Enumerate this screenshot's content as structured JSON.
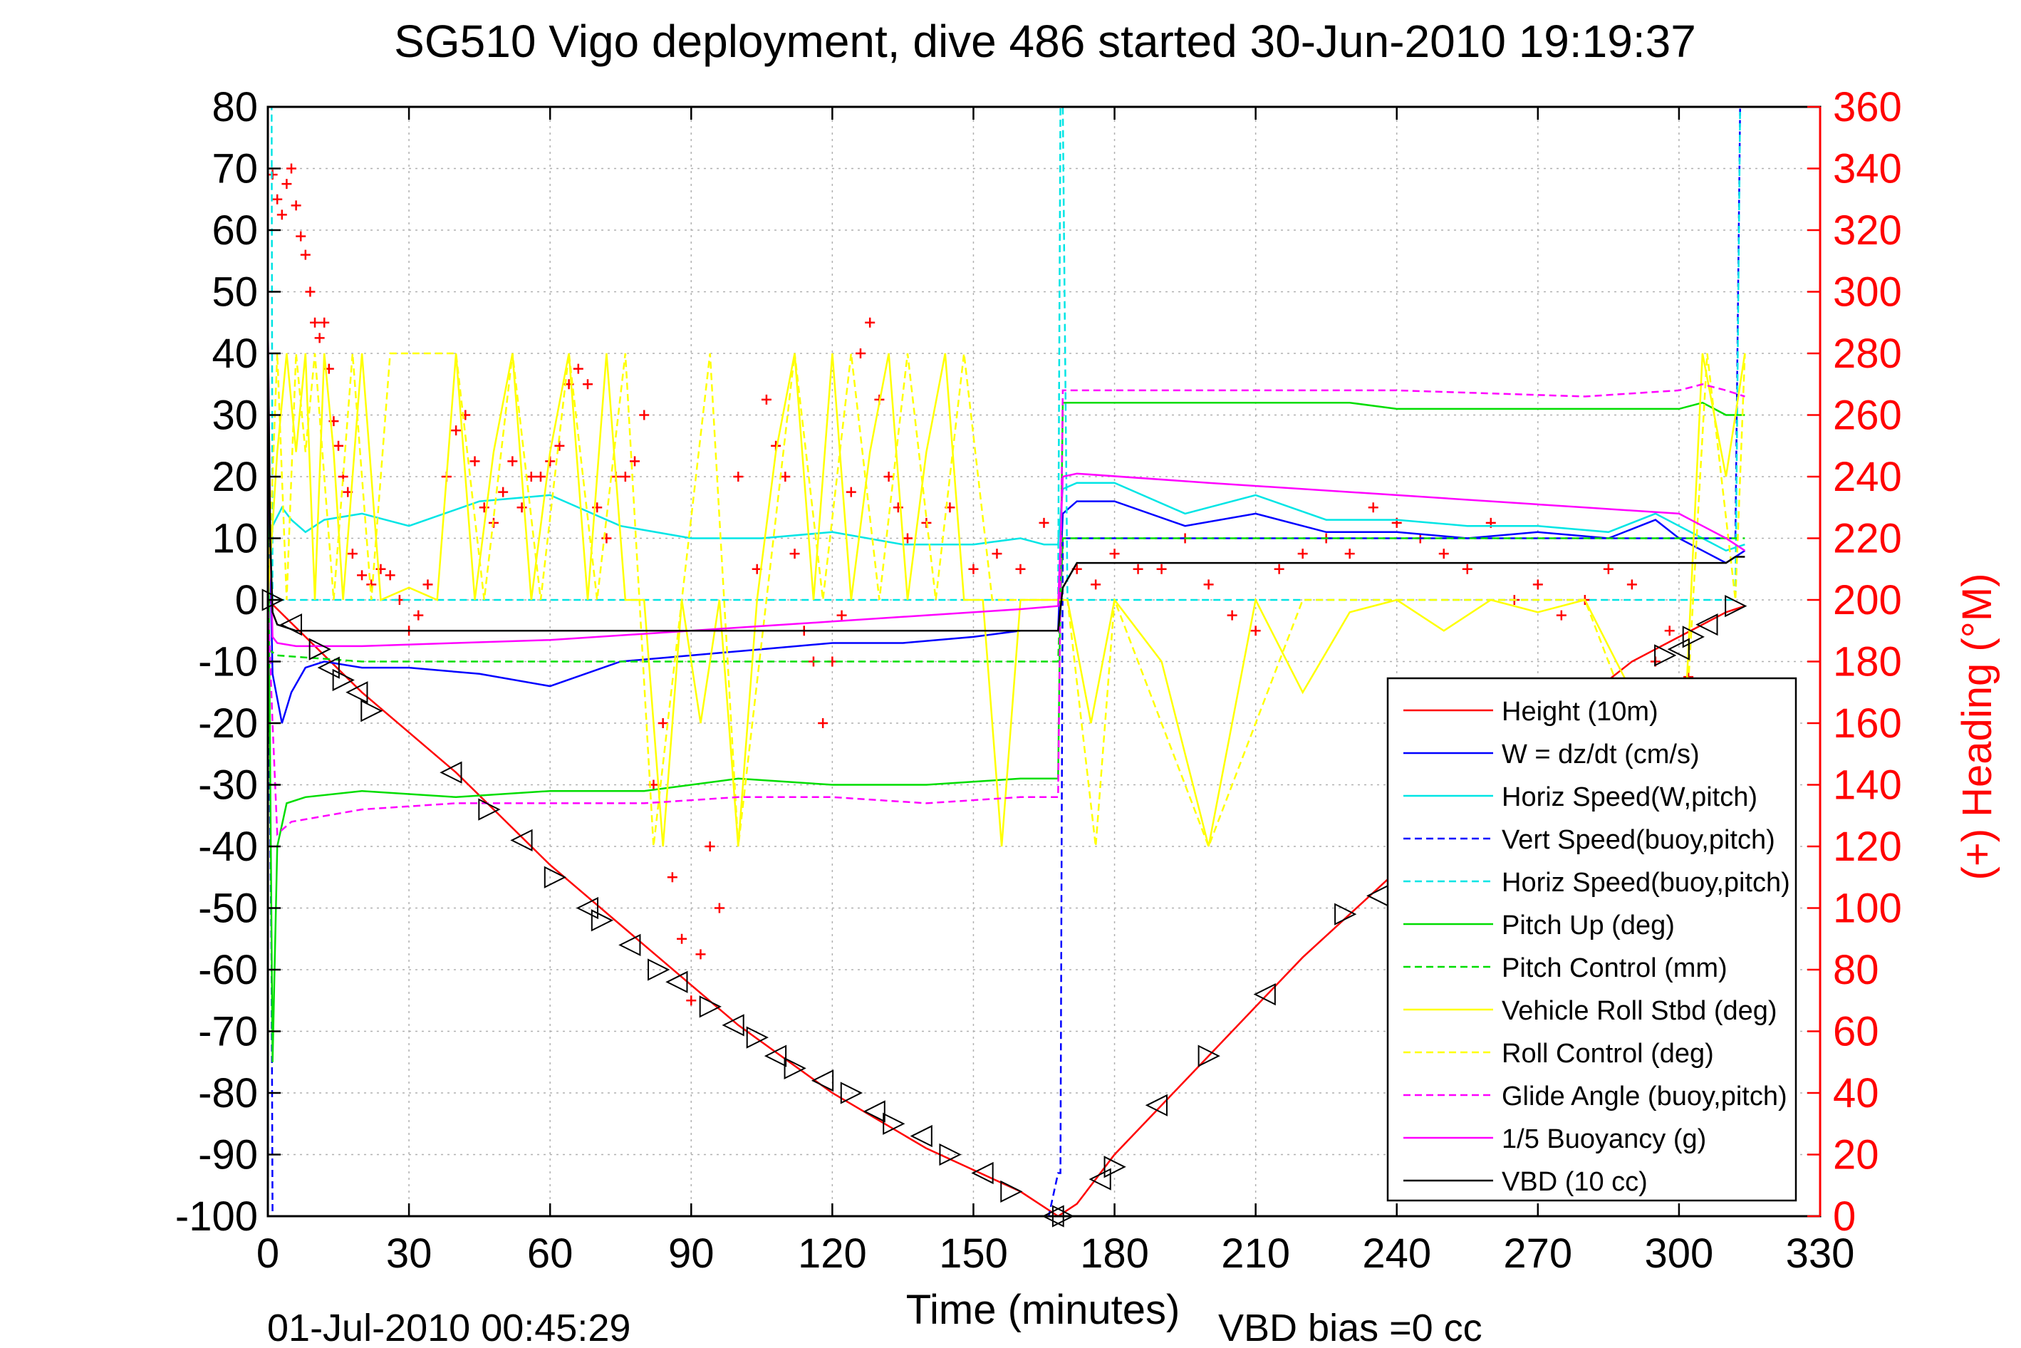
{
  "chart_data": {
    "type": "line",
    "title": "SG510 Vigo deployment, dive 486 started 30-Jun-2010 19:19:37",
    "xlabel": "Time (minutes)",
    "ylabel": "",
    "ylabel_right": "(+) Heading (°M)",
    "footer_left": "01-Jul-2010 00:45:29",
    "footer_right": "VBD bias =0 cc",
    "xlim": [
      0,
      330
    ],
    "ylim": [
      -100,
      80
    ],
    "ylim_right": [
      0,
      360
    ],
    "grid": true,
    "legend_position": "bottom-right",
    "x_ticks": [
      0,
      30,
      60,
      90,
      120,
      150,
      180,
      210,
      240,
      270,
      300,
      330
    ],
    "y_ticks": [
      -100,
      -90,
      -80,
      -70,
      -60,
      -50,
      -40,
      -30,
      -20,
      -10,
      0,
      10,
      20,
      30,
      40,
      50,
      60,
      70,
      80
    ],
    "y_ticks_right": [
      0,
      20,
      40,
      60,
      80,
      100,
      120,
      140,
      160,
      180,
      200,
      220,
      240,
      260,
      280,
      300,
      320,
      340,
      360
    ],
    "series": [
      {
        "name": "Height (10m)",
        "color": "#ff0000",
        "dash": "solid",
        "x": [
          0,
          20,
          40,
          60,
          80,
          100,
          120,
          140,
          160,
          168,
          172,
          180,
          190,
          200,
          210,
          220,
          230,
          240,
          250,
          260,
          270,
          280,
          290,
          300,
          310,
          314
        ],
        "y": [
          0,
          -15,
          -28,
          -43,
          -56,
          -69,
          -80,
          -89,
          -96,
          -100,
          -98,
          -90,
          -82,
          -74,
          -66,
          -58,
          -51,
          -44,
          -37,
          -30,
          -23,
          -16,
          -10,
          -6,
          -2,
          -1
        ]
      },
      {
        "name": "W = dz/dt (cm/s)",
        "color": "#0000ff",
        "dash": "solid",
        "x": [
          0,
          1,
          3,
          5,
          8,
          12,
          20,
          30,
          45,
          60,
          75,
          90,
          105,
          120,
          135,
          150,
          160,
          165,
          168,
          169,
          172,
          180,
          195,
          210,
          225,
          240,
          255,
          270,
          285,
          295,
          300,
          305,
          310,
          314
        ],
        "y": [
          25,
          -12,
          -20,
          -15,
          -11,
          -10,
          -11,
          -11,
          -12,
          -14,
          -10,
          -9,
          -8,
          -7,
          -7,
          -6,
          -5,
          -5,
          -5,
          14,
          16,
          16,
          12,
          14,
          11,
          11,
          10,
          11,
          10,
          13,
          10,
          8,
          6,
          8
        ]
      },
      {
        "name": "Horiz Speed(W,pitch)",
        "color": "#00e5e5",
        "dash": "solid",
        "x": [
          0,
          1,
          3,
          5,
          8,
          12,
          20,
          30,
          45,
          60,
          75,
          90,
          105,
          120,
          135,
          150,
          160,
          165,
          168,
          169,
          172,
          180,
          195,
          210,
          225,
          240,
          255,
          270,
          285,
          295,
          300,
          305,
          310,
          314
        ],
        "y": [
          0,
          12,
          15,
          13,
          11,
          13,
          14,
          12,
          16,
          17,
          12,
          10,
          10,
          11,
          9,
          9,
          10,
          9,
          9,
          18,
          19,
          19,
          14,
          17,
          13,
          13,
          12,
          12,
          11,
          14,
          12,
          10,
          8,
          9
        ]
      },
      {
        "name": "Vert Speed(buoy,pitch)",
        "color": "#0000ff",
        "dash": "dashed",
        "x": [
          0,
          0.8,
          1,
          2,
          5,
          160,
          166,
          168,
          168.5,
          169,
          170,
          180,
          300,
          312,
          313,
          314
        ],
        "y": [
          0,
          -60,
          -100,
          -100,
          -100,
          -100,
          -100,
          -93,
          -93,
          10,
          10,
          10,
          10,
          10,
          80,
          80
        ]
      },
      {
        "name": "Horiz Speed(buoy,pitch)",
        "color": "#00e5e5",
        "dash": "dashed",
        "x": [
          0,
          0.8,
          1,
          2,
          166,
          168,
          168.5,
          169,
          170,
          180,
          300,
          312,
          313,
          314
        ],
        "y": [
          80,
          80,
          0,
          0,
          0,
          0,
          80,
          80,
          0,
          0,
          0,
          0,
          80,
          80
        ]
      },
      {
        "name": "Pitch Up (deg)",
        "color": "#00dd00",
        "dash": "solid",
        "x": [
          0,
          1,
          2,
          4,
          8,
          20,
          40,
          60,
          80,
          100,
          120,
          140,
          160,
          168,
          169,
          172,
          200,
          230,
          240,
          260,
          280,
          300,
          305,
          310,
          314
        ],
        "y": [
          20,
          -75,
          -40,
          -33,
          -32,
          -31,
          -32,
          -31,
          -31,
          -29,
          -30,
          -30,
          -29,
          -29,
          32,
          32,
          32,
          32,
          31,
          31,
          31,
          31,
          32,
          30,
          30
        ]
      },
      {
        "name": "Pitch Control (mm)",
        "color": "#00dd00",
        "dash": "dashed",
        "x": [
          0,
          2,
          20,
          60,
          100,
          140,
          168,
          169,
          200,
          240,
          280,
          314
        ],
        "y": [
          -8,
          -9,
          -10,
          -10,
          -10,
          -10,
          -10,
          10,
          10,
          10,
          10,
          10
        ]
      },
      {
        "name": "Vehicle Roll Stbd (deg)",
        "color": "#ffff00",
        "dash": "solid",
        "x": [
          0,
          2,
          4,
          6,
          8,
          10,
          12,
          14,
          16,
          20,
          24,
          30,
          36,
          40,
          44,
          48,
          52,
          56,
          60,
          64,
          68,
          72,
          76,
          80,
          84,
          88,
          92,
          96,
          100,
          104,
          108,
          112,
          116,
          120,
          124,
          128,
          132,
          136,
          140,
          144,
          148,
          152,
          156,
          160,
          164,
          168,
          170,
          175,
          180,
          190,
          200,
          210,
          220,
          230,
          240,
          250,
          260,
          270,
          280,
          290,
          300,
          305,
          310,
          314
        ],
        "y": [
          0,
          24,
          40,
          24,
          40,
          0,
          40,
          24,
          0,
          40,
          0,
          2,
          0,
          40,
          0,
          24,
          40,
          0,
          24,
          40,
          0,
          40,
          0,
          0,
          -40,
          0,
          -20,
          0,
          -40,
          0,
          24,
          40,
          0,
          40,
          0,
          24,
          40,
          0,
          24,
          40,
          0,
          0,
          -40,
          0,
          0,
          0,
          0,
          -20,
          0,
          -10,
          -40,
          0,
          -15,
          -2,
          0,
          -5,
          0,
          -2,
          0,
          -15,
          -40,
          40,
          20,
          40
        ]
      },
      {
        "name": "Roll Control (deg)",
        "color": "#ffff00",
        "dash": "dashed",
        "x": [
          0,
          2,
          4,
          6,
          8,
          10,
          14,
          18,
          22,
          26,
          40,
          46,
          52,
          58,
          64,
          70,
          76,
          82,
          88,
          94,
          100,
          106,
          112,
          118,
          124,
          130,
          136,
          142,
          148,
          154,
          160,
          168,
          170,
          176,
          180,
          200,
          220,
          240,
          260,
          280,
          300,
          306,
          312,
          314
        ],
        "y": [
          0,
          40,
          0,
          40,
          24,
          40,
          0,
          40,
          0,
          40,
          40,
          0,
          40,
          0,
          40,
          0,
          40,
          -40,
          0,
          40,
          -40,
          0,
          40,
          0,
          40,
          0,
          40,
          0,
          40,
          0,
          0,
          0,
          0,
          -40,
          0,
          -40,
          0,
          0,
          0,
          0,
          -40,
          40,
          0,
          40
        ]
      },
      {
        "name": "Glide Angle (buoy,pitch)",
        "color": "#ff00ff",
        "dash": "dashed",
        "x": [
          0,
          1,
          2,
          5,
          20,
          40,
          60,
          80,
          100,
          120,
          140,
          160,
          168,
          169,
          172,
          200,
          240,
          280,
          300,
          305,
          310,
          314
        ],
        "y": [
          0,
          -20,
          -38,
          -36,
          -34,
          -33,
          -33,
          -33,
          -32,
          -32,
          -33,
          -32,
          -32,
          34,
          34,
          34,
          34,
          33,
          34,
          35,
          34,
          33
        ]
      },
      {
        "name": "1/5 Buoyancy (g)",
        "color": "#ff00ff",
        "dash": "solid",
        "x": [
          0,
          0.5,
          1,
          2,
          6,
          20,
          40,
          60,
          80,
          100,
          120,
          140,
          160,
          168,
          169,
          172,
          200,
          240,
          280,
          300,
          305,
          310,
          314
        ],
        "y": [
          45,
          10,
          -6,
          -7,
          -7.5,
          -7.5,
          -7,
          -6.5,
          -5.5,
          -4.5,
          -3.5,
          -2.5,
          -1.5,
          -1,
          20,
          20.5,
          19,
          17,
          15,
          14,
          12,
          10,
          8
        ]
      },
      {
        "name": "VBD (10 cc)",
        "color": "#000000",
        "dash": "solid",
        "x": [
          0,
          0.5,
          1,
          2,
          6,
          20,
          60,
          100,
          140,
          168,
          169,
          172,
          200,
          240,
          280,
          300,
          310,
          312,
          314
        ],
        "y": [
          45,
          10,
          -2,
          -4,
          -5,
          -5,
          -5,
          -5,
          -5,
          -5,
          2,
          6,
          6,
          6,
          6,
          6,
          6,
          7,
          7
        ]
      }
    ],
    "heading_points": {
      "name": "Heading (°M)",
      "color": "#ff0000",
      "axis": "right",
      "x": [
        1,
        2,
        3,
        4,
        5,
        6,
        7,
        8,
        9,
        10,
        11,
        12,
        13,
        14,
        15,
        16,
        17,
        18,
        20,
        22,
        24,
        26,
        28,
        30,
        32,
        34,
        38,
        40,
        42,
        44,
        46,
        48,
        50,
        52,
        54,
        56,
        58,
        60,
        62,
        64,
        66,
        68,
        70,
        72,
        74,
        76,
        78,
        80,
        82,
        84,
        86,
        88,
        90,
        92,
        94,
        96,
        100,
        104,
        106,
        108,
        110,
        112,
        114,
        116,
        118,
        120,
        122,
        124,
        126,
        128,
        130,
        132,
        134,
        136,
        140,
        145,
        150,
        155,
        160,
        165,
        172,
        176,
        180,
        185,
        190,
        195,
        200,
        205,
        210,
        215,
        220,
        225,
        230,
        235,
        240,
        245,
        250,
        255,
        260,
        265,
        270,
        275,
        280,
        285,
        290,
        295,
        298,
        302,
        306
      ],
      "y": [
        338,
        330,
        325,
        335,
        340,
        328,
        318,
        312,
        300,
        290,
        285,
        290,
        275,
        258,
        250,
        240,
        235,
        215,
        208,
        205,
        210,
        208,
        200,
        190,
        195,
        205,
        240,
        255,
        260,
        245,
        230,
        225,
        235,
        245,
        230,
        240,
        240,
        245,
        250,
        270,
        275,
        270,
        230,
        220,
        240,
        240,
        245,
        260,
        140,
        160,
        110,
        90,
        70,
        85,
        120,
        100,
        240,
        210,
        265,
        250,
        240,
        215,
        190,
        180,
        160,
        180,
        195,
        235,
        280,
        290,
        265,
        240,
        230,
        220,
        225,
        230,
        210,
        215,
        210,
        225,
        210,
        205,
        215,
        210,
        210,
        220,
        205,
        195,
        190,
        210,
        215,
        220,
        215,
        230,
        225,
        220,
        215,
        210,
        225,
        200,
        205,
        195,
        200,
        210,
        205,
        180,
        190,
        175,
        170
      ]
    },
    "dive_markers": {
      "name": "",
      "color": "#000000",
      "x": [
        1,
        5,
        11,
        13,
        16,
        19,
        22,
        39,
        47,
        54,
        61,
        68,
        71,
        77,
        83,
        87,
        94,
        99,
        104,
        108,
        112,
        118,
        124,
        129,
        133,
        139,
        145,
        152,
        158,
        167,
        169,
        177,
        180,
        189,
        200,
        212,
        229,
        236,
        297,
        300,
        303,
        306,
        312
      ],
      "y": [
        0,
        -4,
        -8,
        -11,
        -13,
        -15,
        -18,
        -28,
        -34,
        -39,
        -45,
        -50,
        -52,
        -56,
        -60,
        -62,
        -66,
        -69,
        -71,
        -74,
        -76,
        -78,
        -80,
        -83,
        -85,
        -87,
        -90,
        -93,
        -96,
        -100,
        -100,
        -94,
        -92,
        -82,
        -74,
        -64,
        -51,
        -48,
        -9,
        -8,
        -6,
        -4,
        -1
      ]
    }
  }
}
